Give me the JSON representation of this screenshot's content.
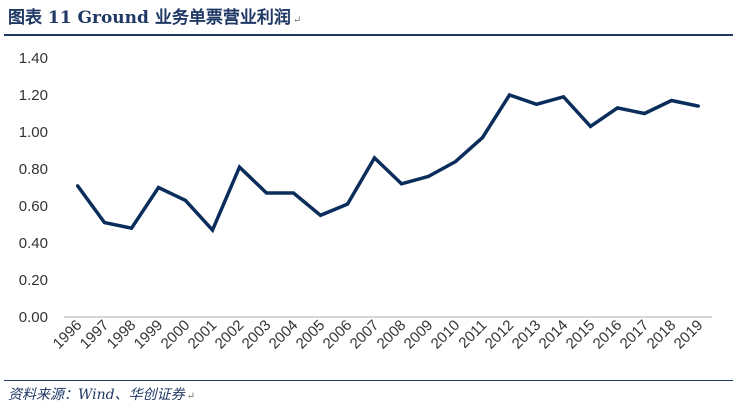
{
  "figure": {
    "title": "图表 11   Ground 业务单票营业利润",
    "source": "资料来源：Wind、华创证券",
    "paragraph_mark": "↵"
  },
  "chart_data": {
    "type": "line",
    "title": "",
    "xlabel": "",
    "ylabel": "",
    "x": [
      "1996",
      "1997",
      "1998",
      "1999",
      "2000",
      "2001",
      "2002",
      "2003",
      "2004",
      "2005",
      "2006",
      "2007",
      "2008",
      "2009",
      "2010",
      "2011",
      "2012",
      "2013",
      "2014",
      "2015",
      "2016",
      "2017",
      "2018",
      "2019"
    ],
    "series": [
      {
        "values": [
          0.71,
          0.51,
          0.48,
          0.7,
          0.63,
          0.47,
          0.81,
          0.67,
          0.67,
          0.55,
          0.61,
          0.86,
          0.72,
          0.76,
          0.84,
          0.97,
          1.2,
          1.15,
          1.19,
          1.03,
          1.13,
          1.1,
          1.17,
          1.14
        ]
      }
    ],
    "ylim": [
      0,
      1.4
    ],
    "yticks": [
      "0.00",
      "0.20",
      "0.40",
      "0.60",
      "0.80",
      "1.00",
      "1.20",
      "1.40"
    ],
    "ytick_values": [
      0,
      0.2,
      0.4,
      0.6,
      0.8,
      1.0,
      1.2,
      1.4
    ],
    "grid": false,
    "legend": "none",
    "line_color": "#0b2d5b",
    "axis_color": "#bfbfbf"
  }
}
